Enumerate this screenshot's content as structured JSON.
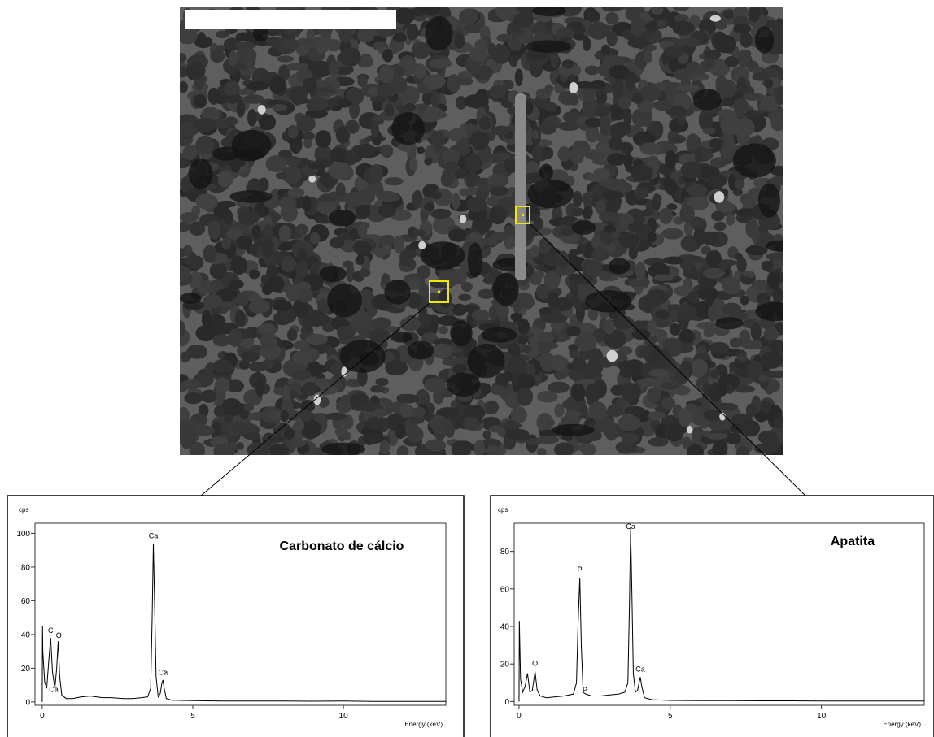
{
  "chart_data": [
    {
      "type": "line",
      "title": "Carbonato de cálcio",
      "y_label": "cps",
      "x_label": "Energy (keV)",
      "color": "#000000",
      "xlim": [
        -0.24,
        13.4
      ],
      "xticks": [
        0,
        5,
        10
      ],
      "ylim": [
        -2,
        106
      ],
      "yticks": [
        0,
        20,
        40,
        60,
        80,
        100
      ],
      "x": [
        0,
        0.01,
        0.02,
        0.08,
        0.15,
        0.22,
        0.28,
        0.34,
        0.42,
        0.48,
        0.53,
        0.58,
        0.65,
        0.8,
        1.0,
        1.3,
        1.6,
        1.8,
        2.0,
        2.3,
        2.7,
        3.0,
        3.3,
        3.5,
        3.6,
        3.65,
        3.69,
        3.73,
        3.78,
        3.85,
        3.92,
        3.97,
        4.01,
        4.05,
        4.12,
        4.3,
        5,
        6,
        7,
        8,
        9,
        10,
        11,
        12,
        13.4
      ],
      "values": [
        0,
        45,
        30,
        12,
        8,
        25,
        38,
        18,
        8,
        20,
        36,
        15,
        4,
        2,
        2,
        3,
        3.5,
        3,
        2.5,
        2.5,
        2,
        2,
        2.5,
        3,
        8,
        50,
        94,
        60,
        15,
        3,
        5,
        11,
        13,
        8,
        2,
        1,
        0.8,
        0.5,
        0.5,
        0.5,
        0.4,
        0.5,
        0.3,
        0.3,
        0.3
      ],
      "annotations": [
        {
          "text": "Ca",
          "x": 3.69,
          "y": 97
        },
        {
          "text": "C",
          "x": 0.28,
          "y": 41
        },
        {
          "text": "O",
          "x": 0.55,
          "y": 38
        },
        {
          "text": "Ca",
          "x": 4.01,
          "y": 16
        },
        {
          "text": "Ca",
          "x": 0.38,
          "y": 6
        }
      ]
    },
    {
      "type": "line",
      "title": "Apatita",
      "y_label": "cps",
      "x_label": "Energy (keV)",
      "color": "#000000",
      "xlim": [
        -0.16,
        13.4
      ],
      "xticks": [
        0,
        5,
        10
      ],
      "ylim": [
        -2,
        95
      ],
      "yticks": [
        0,
        20,
        40,
        60,
        80
      ],
      "x": [
        0,
        0.01,
        0.05,
        0.12,
        0.2,
        0.28,
        0.36,
        0.44,
        0.53,
        0.6,
        0.7,
        0.9,
        1.2,
        1.5,
        1.8,
        1.9,
        1.95,
        2.01,
        2.06,
        2.12,
        2.2,
        2.4,
        2.7,
        3.0,
        3.3,
        3.5,
        3.6,
        3.65,
        3.69,
        3.73,
        3.78,
        3.85,
        3.92,
        3.97,
        4.01,
        4.06,
        4.15,
        4.4,
        5,
        6,
        7,
        8,
        9,
        10,
        11,
        12,
        13.4
      ],
      "values": [
        0,
        43,
        12,
        5,
        8,
        15,
        5,
        6,
        16,
        6,
        3,
        2,
        2.5,
        3,
        4,
        10,
        40,
        66,
        30,
        5,
        4,
        3,
        3,
        3.5,
        4,
        5,
        10,
        50,
        92,
        60,
        15,
        5,
        6,
        10,
        13,
        8,
        2,
        1,
        0.6,
        0.5,
        0.5,
        0.4,
        0.4,
        0.3,
        0.3,
        0.3,
        0.3
      ],
      "annotations": [
        {
          "text": "Ca",
          "x": 3.69,
          "y": 92
        },
        {
          "text": "P",
          "x": 2.01,
          "y": 69
        },
        {
          "text": "O",
          "x": 0.53,
          "y": 19
        },
        {
          "text": "P",
          "x": 2.18,
          "y": 5
        },
        {
          "text": "Ca",
          "x": 4.01,
          "y": 16
        }
      ]
    }
  ]
}
